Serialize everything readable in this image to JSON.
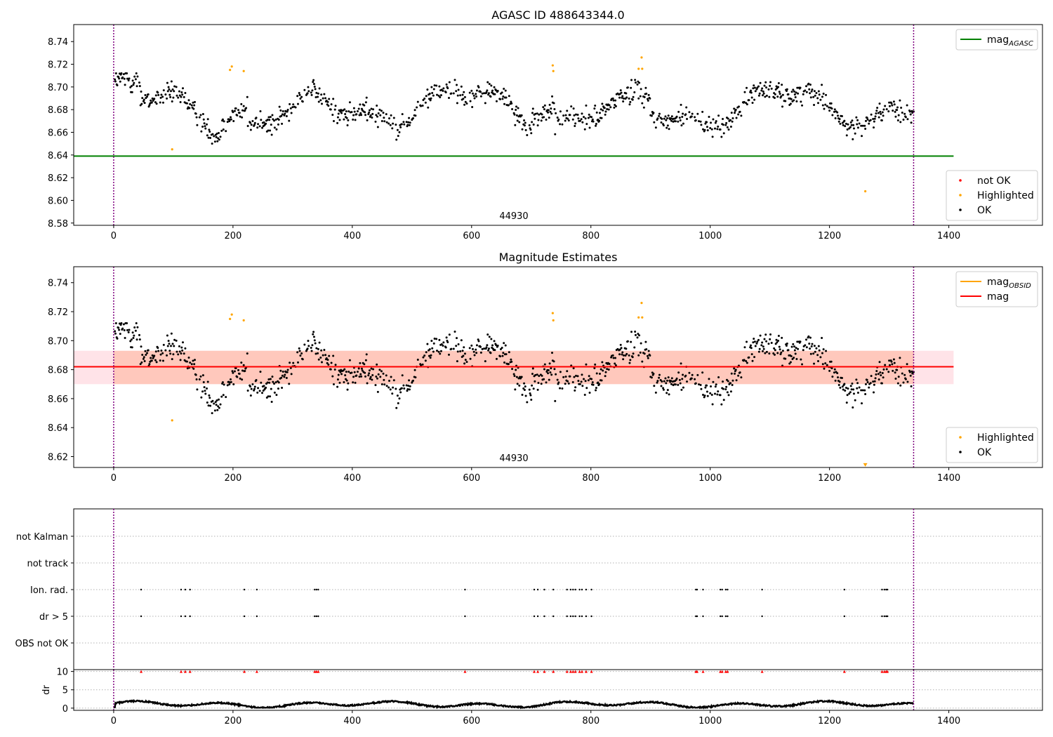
{
  "chart_data": [
    {
      "type": "scatter",
      "panel": "top",
      "title": "AGASC ID 488643344.0",
      "annotation": "44930",
      "xlim": [
        -67,
        1557
      ],
      "ylim": [
        8.578,
        8.755
      ],
      "xticks": [
        0,
        200,
        400,
        600,
        800,
        1000,
        1200,
        1400
      ],
      "yticks": [
        8.58,
        8.6,
        8.62,
        8.64,
        8.66,
        8.68,
        8.7,
        8.72,
        8.74
      ],
      "ytick_decimals": 2,
      "vlines": [
        0,
        1341
      ],
      "series": [
        {
          "name": "not OK",
          "color": "#ff0000",
          "kind": "points"
        },
        {
          "name": "Highlighted",
          "color": "#ffa500",
          "kind": "points",
          "points": [
            [
              98,
              8.645
            ],
            [
              195,
              8.715
            ],
            [
              198,
              8.718
            ],
            [
              218,
              8.714
            ],
            [
              736,
              8.719
            ],
            [
              737,
              8.714
            ],
            [
              880,
              8.716
            ],
            [
              885,
              8.726
            ],
            [
              886,
              8.716
            ],
            [
              1260,
              8.608
            ]
          ]
        },
        {
          "name": "OK",
          "color": "#000000",
          "kind": "points",
          "generated": true
        },
        {
          "name": "mag",
          "subscript": "AGASC",
          "color": "#008000",
          "kind": "hline",
          "y": 8.639,
          "x": [
            -67,
            1408
          ]
        }
      ],
      "legends": [
        {
          "position": "upper right",
          "entries": [
            {
              "label": "mag",
              "sub": "AGASC",
              "color": "#008000",
              "marker": "line"
            }
          ]
        },
        {
          "position": "lower right",
          "entries": [
            {
              "label": "not OK",
              "color": "#ff0000",
              "marker": "dot"
            },
            {
              "label": "Highlighted",
              "color": "#ffa500",
              "marker": "dot"
            },
            {
              "label": "OK",
              "color": "#000000",
              "marker": "dot"
            }
          ]
        }
      ]
    },
    {
      "type": "scatter",
      "panel": "middle",
      "title": "Magnitude Estimates",
      "annotation": "44930",
      "xlim": [
        -67,
        1557
      ],
      "ylim": [
        8.6125,
        8.751
      ],
      "xticks": [
        0,
        200,
        400,
        600,
        800,
        1000,
        1200,
        1400
      ],
      "yticks": [
        8.62,
        8.64,
        8.66,
        8.68,
        8.7,
        8.72,
        8.74
      ],
      "ytick_decimals": 2,
      "vlines": [
        0,
        1341
      ],
      "series": [
        {
          "name": "Highlighted",
          "color": "#ffa500",
          "kind": "points",
          "points": [
            [
              98,
              8.645
            ],
            [
              195,
              8.715
            ],
            [
              198,
              8.718
            ],
            [
              218,
              8.714
            ],
            [
              736,
              8.719
            ],
            [
              737,
              8.714
            ],
            [
              880,
              8.716
            ],
            [
              885,
              8.726
            ],
            [
              886,
              8.716
            ]
          ]
        },
        {
          "name": "OK",
          "color": "#000000",
          "kind": "points",
          "generated": true
        },
        {
          "name": "mag",
          "subscript": "OBSID",
          "color": "#ffa500",
          "kind": "hline",
          "y": 8.682,
          "x": [
            0,
            1341
          ]
        },
        {
          "name": "mag",
          "color": "#ff0000",
          "kind": "hline",
          "y": 8.682,
          "x": [
            -67,
            1408
          ]
        }
      ],
      "bands": [
        {
          "y": [
            8.67,
            8.693
          ],
          "x": [
            -67,
            1408
          ],
          "color": "#ffc0cb",
          "opacity": 0.45
        },
        {
          "y": [
            8.67,
            8.693
          ],
          "x": [
            0,
            1341
          ],
          "color": "#ffa07a",
          "opacity": 0.4
        }
      ],
      "markers": [
        {
          "x": 1260,
          "y": 8.614,
          "color": "#ffa500",
          "shape": "triangle-down"
        }
      ],
      "legends": [
        {
          "position": "upper right",
          "entries": [
            {
              "label": "mag",
              "sub": "OBSID",
              "color": "#ffa500",
              "marker": "line"
            },
            {
              "label": "mag",
              "color": "#ff0000",
              "marker": "line"
            }
          ]
        },
        {
          "position": "lower right",
          "entries": [
            {
              "label": "Highlighted",
              "color": "#ffa500",
              "marker": "dot"
            },
            {
              "label": "OK",
              "color": "#000000",
              "marker": "dot"
            }
          ]
        }
      ]
    },
    {
      "type": "scatter",
      "panel": "flags",
      "xlim": [
        -67,
        1557
      ],
      "categories": [
        "not Kalman",
        "not track",
        "Ion. rad.",
        "dr > 5",
        "OBS not OK"
      ],
      "vlines": [
        0,
        1341
      ],
      "flag_x": [
        46,
        113,
        120,
        128,
        219,
        240,
        337,
        340,
        343,
        589,
        705,
        711,
        722,
        737,
        760,
        766,
        770,
        774,
        781,
        785,
        792,
        801,
        976,
        978,
        988,
        1017,
        1020,
        1026,
        1029,
        1087,
        1225,
        1288,
        1292,
        1295,
        1297
      ],
      "flagged_rows": [
        "Ion. rad.",
        "dr > 5"
      ]
    },
    {
      "type": "line",
      "panel": "dr",
      "ylabel": "dr",
      "xlim": [
        -67,
        1557
      ],
      "ylim": [
        -0.6,
        10.5
      ],
      "xticks": [
        0,
        200,
        400,
        600,
        800,
        1000,
        1200,
        1400
      ],
      "yticks": [
        0,
        5,
        10
      ],
      "vlines": [
        0,
        1341
      ],
      "clipped_marker_y": 10,
      "clipped_marker_color": "#ff0000",
      "clipped_x": [
        46,
        113,
        120,
        128,
        219,
        240,
        337,
        340,
        343,
        589,
        705,
        711,
        722,
        737,
        760,
        766,
        770,
        774,
        781,
        785,
        792,
        801,
        976,
        978,
        988,
        1017,
        1020,
        1026,
        1029,
        1087,
        1225,
        1288,
        1292,
        1295,
        1297
      ]
    }
  ]
}
